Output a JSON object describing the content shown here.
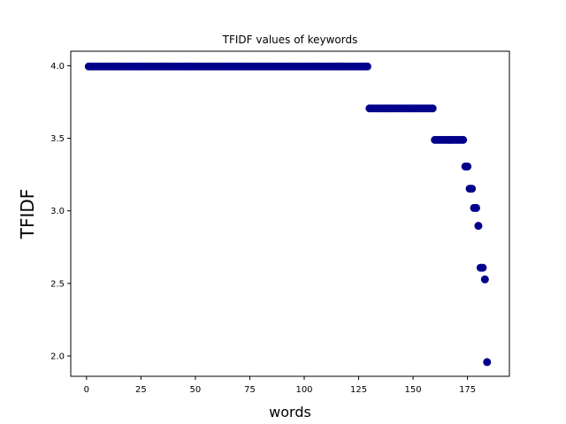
{
  "chart_data": {
    "type": "scatter",
    "title": "TFIDF values of keywords",
    "xlabel": "words",
    "ylabel": "TFIDF",
    "xlim": [
      -7.25,
      194.25
    ],
    "ylim": [
      1.86,
      4.1
    ],
    "xticks": [
      0,
      25,
      50,
      75,
      100,
      125,
      150,
      175
    ],
    "yticks": [
      2.0,
      2.5,
      3.0,
      3.5,
      4.0
    ],
    "xtick_labels": [
      "0",
      "25",
      "50",
      "75",
      "100",
      "125",
      "150",
      "175"
    ],
    "ytick_labels": [
      "2.0",
      "2.5",
      "3.0",
      "3.5",
      "4.0"
    ],
    "marker_color": "#00008b",
    "grid": false,
    "segments": [
      {
        "x_start": 1,
        "x_end": 129,
        "y": 3.995
      },
      {
        "x_start": 130,
        "x_end": 159,
        "y": 3.706
      },
      {
        "x_start": 160,
        "x_end": 173,
        "y": 3.489
      },
      {
        "x_start": 174,
        "x_end": 175,
        "y": 3.306
      },
      {
        "x_start": 176,
        "x_end": 177,
        "y": 3.153
      },
      {
        "x_start": 178,
        "x_end": 179,
        "y": 3.02
      },
      {
        "x_start": 180,
        "x_end": 180,
        "y": 2.897
      },
      {
        "x_start": 181,
        "x_end": 182,
        "y": 2.608
      },
      {
        "x_start": 183,
        "x_end": 183,
        "y": 2.528
      },
      {
        "x_start": 184,
        "x_end": 184,
        "y": 1.958
      }
    ]
  }
}
